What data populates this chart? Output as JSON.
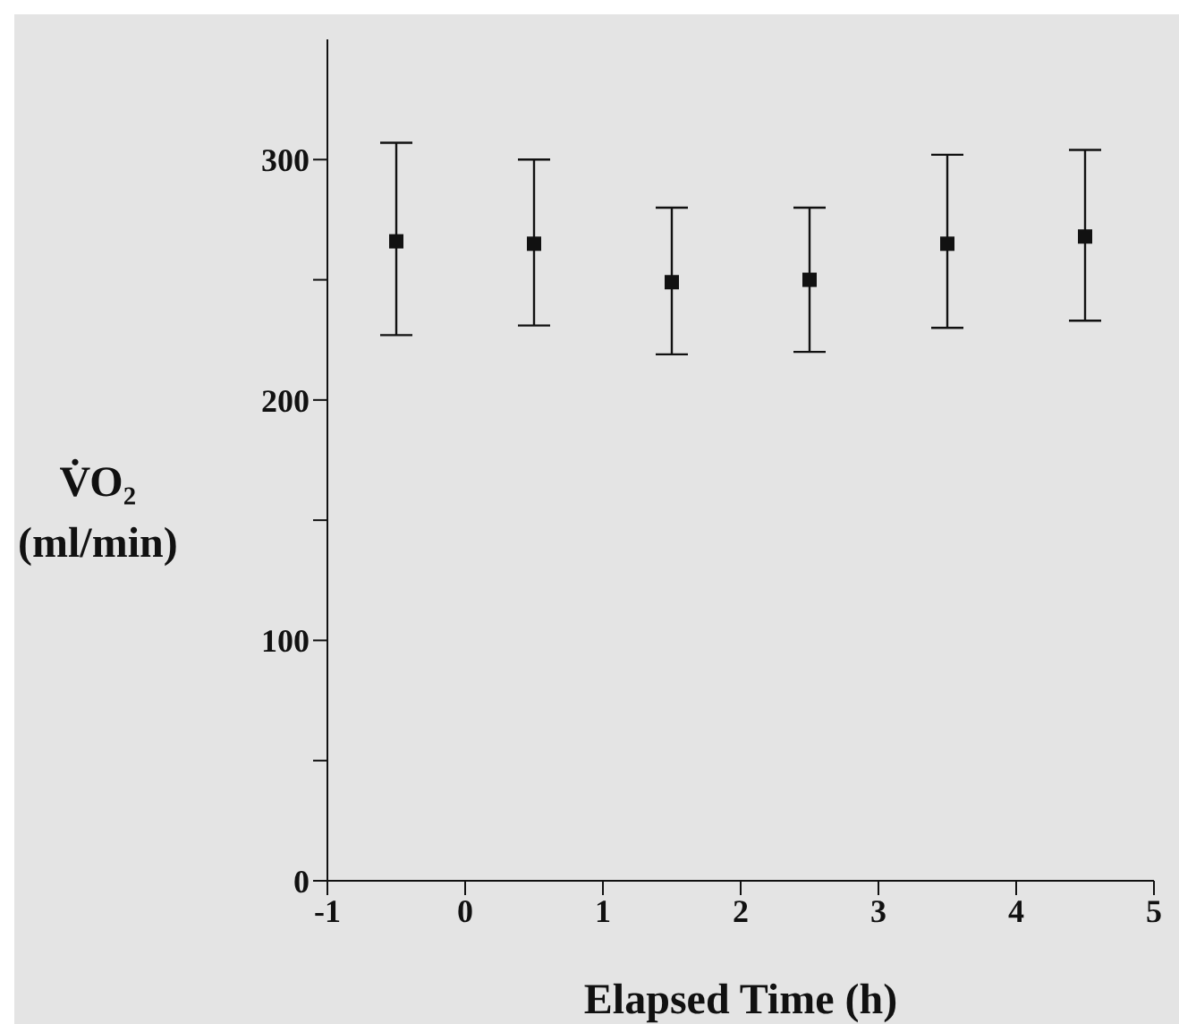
{
  "chart_data": {
    "type": "scatter",
    "xlabel": "Elapsed Time (h)",
    "ylabel": "V̇O₂\n(ml/min)",
    "x": [
      -0.5,
      0.5,
      1.5,
      2.5,
      3.5,
      4.5
    ],
    "values": [
      266,
      265,
      249,
      250,
      265,
      268
    ],
    "errors": [
      [
        227,
        307
      ],
      [
        231,
        300
      ],
      [
        219,
        280
      ],
      [
        220,
        280
      ],
      [
        230,
        302
      ],
      [
        233,
        304
      ]
    ],
    "color": "#111111",
    "marker": "square",
    "xlim": [
      -1,
      5
    ],
    "xticks": [
      -1,
      0,
      1,
      2,
      3,
      4,
      5
    ],
    "ylim": [
      0,
      350
    ],
    "yticks": [
      0,
      {
        "value": 50,
        "label": null
      },
      100,
      {
        "value": 150,
        "label": null
      },
      200,
      {
        "value": 250,
        "label": null
      },
      300
    ],
    "grid": false,
    "legend": false
  }
}
